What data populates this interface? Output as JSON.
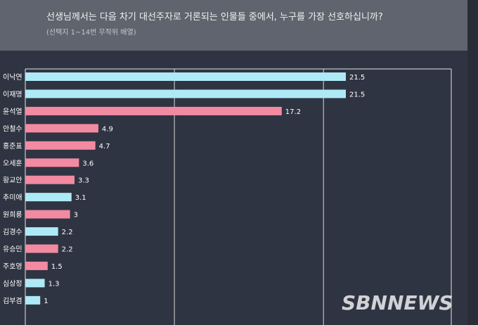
{
  "header": {
    "title": "선생님께서는 다음 차기 대선주자로 거론되는 인물들 중에서, 누구를 가장 선호하십니까?",
    "subtitle": "(선택지 1~14번 무작위 배열)"
  },
  "watermark": "SBNNEWS",
  "colors": {
    "cyan": "#aeeaf6",
    "pink": "#f28aa2",
    "background": "#2f3442",
    "header": "#5f646e"
  },
  "chart_data": {
    "type": "bar",
    "orientation": "horizontal",
    "title": "선생님께서는 다음 차기 대선주자로 거론되는 인물들 중에서, 누구를 가장 선호하십니까?",
    "subtitle": "(선택지 1~14번 무작위 배열)",
    "categories": [
      "이낙연",
      "이재명",
      "윤석열",
      "안철수",
      "홍준표",
      "오세훈",
      "황교안",
      "추미애",
      "원희룡",
      "김경수",
      "유승민",
      "주호영",
      "심상정",
      "김부겸"
    ],
    "values": [
      21.5,
      21.5,
      17.2,
      4.9,
      4.7,
      3.6,
      3.3,
      3.1,
      3,
      2.2,
      2.2,
      1.5,
      1.3,
      1
    ],
    "value_labels": [
      "21.5",
      "21.5",
      "17.2",
      "4.9",
      "4.7",
      "3.6",
      "3.3",
      "3.1",
      "3",
      "2.2",
      "2.2",
      "1.5",
      "1.3",
      "1"
    ],
    "bar_colors": [
      "cyan",
      "cyan",
      "pink",
      "pink",
      "pink",
      "pink",
      "pink",
      "cyan",
      "pink",
      "cyan",
      "pink",
      "pink",
      "cyan",
      "cyan"
    ],
    "xlim": [
      0,
      25
    ],
    "grid": true
  }
}
